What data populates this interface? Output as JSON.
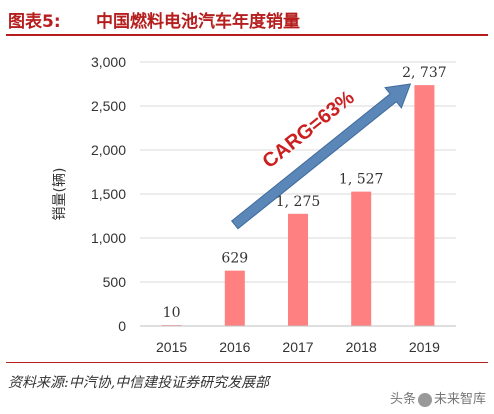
{
  "header": {
    "figure_label": "图表5:",
    "title": "中国燃料电池汽车年度销量"
  },
  "footer": {
    "source": "资料来源:中汽协,中信建投证券研究发展部",
    "watermark_prefix": "头条",
    "watermark_brand": "未来智库"
  },
  "chart_data": {
    "type": "bar",
    "categories": [
      "2015",
      "2016",
      "2017",
      "2018",
      "2019"
    ],
    "values": [
      10,
      629,
      1275,
      1527,
      2737
    ],
    "data_labels": [
      "10",
      "629",
      "1, 275",
      "1, 527",
      "2, 737"
    ],
    "ylabel": "销量(辆)",
    "xlabel": "",
    "ylim": [
      0,
      3000
    ],
    "yticks": [
      0,
      500,
      1000,
      1500,
      2000,
      2500,
      3000
    ],
    "ytick_labels": [
      "0",
      "500",
      "1,000",
      "1,500",
      "2,000",
      "2,500",
      "3,000"
    ],
    "grid": true,
    "bar_color": "#ff8080",
    "annotation": {
      "text": "CARG=63%",
      "text_color": "#cc1f1f",
      "arrow_color": "#5b86b8",
      "from_category": "2016",
      "from_value": 1150,
      "to_category": "2019",
      "to_value": 2750
    }
  }
}
